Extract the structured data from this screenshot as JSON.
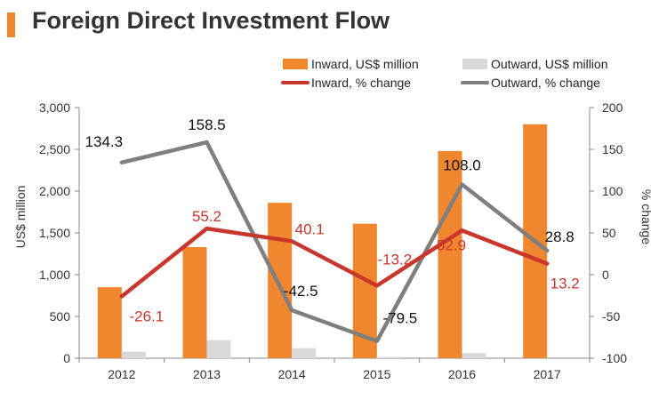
{
  "title": "Foreign Direct Investment Flow",
  "colors": {
    "accent": "#F0862E",
    "inward_bar": "#F0862E",
    "outward_bar": "#D9D9D9",
    "inward_line": "#C9372C",
    "outward_line": "#7F7F7F"
  },
  "chart_data": {
    "type": "bar",
    "categories": [
      "2012",
      "2013",
      "2014",
      "2015",
      "2016",
      "2017"
    ],
    "ylabel": "US$ million",
    "y2label": "% change",
    "ylim": [
      0,
      3000
    ],
    "y2lim": [
      -100,
      200
    ],
    "yticks": [
      "0",
      "500",
      "1,000",
      "1,500",
      "2,000",
      "2,500",
      "3,000"
    ],
    "y2ticks": [
      "-100",
      "-50",
      "0",
      "50",
      "100",
      "150",
      "200"
    ],
    "legend_position": "top-right",
    "grid": false,
    "series": [
      {
        "name": "Inward, US$ million",
        "kind": "bar",
        "axis": "left",
        "values": [
          850,
          1330,
          1860,
          1610,
          2480,
          2800
        ]
      },
      {
        "name": "Outward, US$ million",
        "kind": "bar",
        "axis": "left",
        "values": [
          80,
          215,
          120,
          15,
          60,
          0
        ]
      },
      {
        "name": "Inward, % change",
        "kind": "line",
        "axis": "right",
        "values": [
          -26.1,
          55.2,
          40.1,
          -13.2,
          52.9,
          13.2
        ],
        "labels": [
          "-26.1",
          "55.2",
          "40.1",
          "-13.2",
          "52.9",
          "13.2"
        ]
      },
      {
        "name": "Outward, % change",
        "kind": "line",
        "axis": "right",
        "values": [
          134.3,
          158.5,
          -42.5,
          -79.5,
          108.0,
          28.8
        ],
        "labels": [
          "134.3",
          "158.5",
          "-42.5",
          "-79.5",
          "108.0",
          "28.8"
        ]
      }
    ]
  }
}
